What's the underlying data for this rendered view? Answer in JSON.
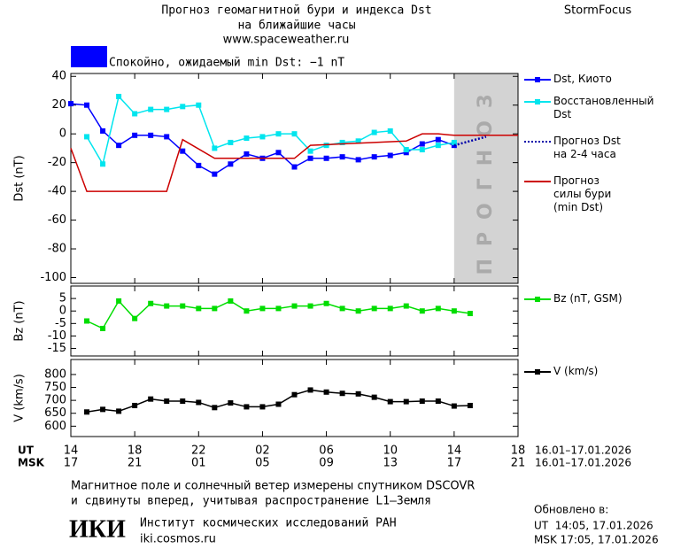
{
  "header": {
    "title": "Прогноз геомагнитной бури и индекса Dst",
    "subtitle": "на ближайшие часы",
    "url": "www.spaceweather.ru",
    "brand": "StormFocus"
  },
  "status": {
    "color": "#0000ff",
    "text": "Спокойно, ожидаемый min Dst: −1 nT"
  },
  "time_axis": {
    "xlim": [
      0,
      28
    ],
    "ut_label": "UT",
    "msk_label": "MSK",
    "ut_ticks": [
      {
        "value": 0,
        "label": "14"
      },
      {
        "value": 4,
        "label": "18"
      },
      {
        "value": 8,
        "label": "22"
      },
      {
        "value": 12,
        "label": "02"
      },
      {
        "value": 16,
        "label": "06"
      },
      {
        "value": 20,
        "label": "10"
      },
      {
        "value": 24,
        "label": "14"
      },
      {
        "value": 28,
        "label": "18"
      }
    ],
    "msk_ticks": [
      {
        "value": 0,
        "label": "17"
      },
      {
        "value": 4,
        "label": "21"
      },
      {
        "value": 8,
        "label": "01"
      },
      {
        "value": 12,
        "label": "05"
      },
      {
        "value": 16,
        "label": "09"
      },
      {
        "value": 20,
        "label": "13"
      },
      {
        "value": 24,
        "label": "17"
      },
      {
        "value": 28,
        "label": "21"
      }
    ],
    "ut_range": "16.01–17.01.2026",
    "msk_range": "16.01–17.01.2026"
  },
  "chart_data": [
    {
      "type": "line",
      "y_label": "Dst (nT)",
      "ylim": [
        -104,
        42
      ],
      "yticks": [
        40,
        20,
        0,
        -20,
        -40,
        -60,
        -80,
        -100
      ],
      "forecast_region": [
        24,
        28
      ],
      "forecast_label": "ПРОГНОЗ",
      "series": [
        {
          "name": "Dst, Киото",
          "color": "#0000ff",
          "marker": "square",
          "x": [
            0,
            1,
            2,
            3,
            4,
            5,
            6,
            7,
            8,
            9,
            10,
            11,
            12,
            13,
            14,
            15,
            16,
            17,
            18,
            19,
            20,
            21,
            22,
            23,
            24
          ],
          "values": [
            21,
            20,
            2,
            -8,
            -1,
            -1,
            -2,
            -12,
            -22,
            -28,
            -21,
            -14,
            -17,
            -13,
            -23,
            -17,
            -17,
            -16,
            -18,
            -16,
            -15,
            -13,
            -7,
            -4,
            -8
          ]
        },
        {
          "name": "Восстановленный\nDst",
          "color": "#00e5ee",
          "marker": "square",
          "x": [
            1,
            2,
            3,
            4,
            5,
            6,
            7,
            8,
            9,
            10,
            11,
            12,
            13,
            14,
            15,
            16,
            17,
            18,
            19,
            20,
            21,
            22,
            23,
            24
          ],
          "values": [
            -2,
            -21,
            26,
            14,
            17,
            17,
            19,
            20,
            -10,
            -6,
            -3,
            -2,
            0,
            0,
            -12,
            -8,
            -6,
            -5,
            1,
            2,
            -11,
            -11,
            -8,
            -6
          ]
        },
        {
          "name": "Прогноз Dst\nна 2-4 часа",
          "color": "#0000aa",
          "dash": "dotted",
          "x": [
            24,
            25,
            26
          ],
          "values": [
            -8,
            -5,
            -2
          ]
        },
        {
          "name": "Прогноз\nсилы бури\n(min Dst)",
          "color": "#cc0000",
          "x": [
            0,
            1,
            6,
            7,
            9,
            14,
            15,
            21,
            22,
            23,
            24,
            28
          ],
          "values": [
            -10,
            -40,
            -40,
            -4,
            -17,
            -17,
            -8,
            -5,
            0,
            0,
            -1,
            -1
          ]
        }
      ]
    },
    {
      "type": "line",
      "y_label": "Bz (nT)",
      "ylim": [
        -18,
        10
      ],
      "yticks": [
        5,
        0,
        -5,
        -10,
        -15
      ],
      "series": [
        {
          "name": "Bz (nT, GSM)",
          "color": "#00dd00",
          "marker": "square",
          "x": [
            1,
            2,
            3,
            4,
            5,
            6,
            7,
            8,
            9,
            10,
            11,
            12,
            13,
            14,
            15,
            16,
            17,
            18,
            19,
            20,
            21,
            22,
            23,
            24,
            25
          ],
          "values": [
            -4,
            -7,
            4,
            -3,
            3,
            2,
            2,
            1,
            1,
            4,
            0,
            1,
            1,
            2,
            2,
            3,
            1,
            0,
            1,
            1,
            2,
            0,
            1,
            0,
            -1
          ]
        }
      ]
    },
    {
      "type": "line",
      "y_label": "V (km/s)",
      "ylim": [
        560,
        858
      ],
      "yticks": [
        800,
        750,
        700,
        650,
        600
      ],
      "series": [
        {
          "name": "V (km/s)",
          "color": "#000000",
          "marker": "square",
          "x": [
            1,
            2,
            3,
            4,
            5,
            6,
            7,
            8,
            9,
            10,
            11,
            12,
            13,
            14,
            15,
            16,
            17,
            18,
            19,
            20,
            21,
            22,
            23,
            24,
            25
          ],
          "values": [
            655,
            665,
            658,
            680,
            705,
            697,
            697,
            692,
            672,
            690,
            675,
            675,
            685,
            722,
            740,
            732,
            727,
            725,
            712,
            695,
            695,
            697,
            697,
            678,
            680
          ]
        }
      ]
    }
  ],
  "footer": {
    "note_1": "Магнитное поле и солнечный ветер измерены спутником DSCOVR",
    "note_2": "и сдвинуты вперед, учитывая распространение L1–Земля",
    "logo": "ИКИ",
    "institute": "Институт космических исследований РАН",
    "site": "iki.cosmos.ru",
    "updated": "Обновлено в:",
    "updated_ut": "UT  14:05, 17.01.2026",
    "updated_msk": "MSK 17:05, 17.01.2026"
  }
}
